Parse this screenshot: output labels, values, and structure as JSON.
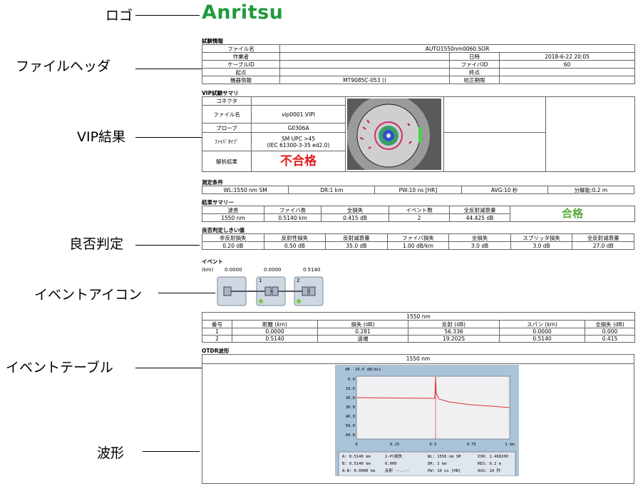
{
  "callouts": [
    "ロゴ",
    "ファイルヘッダ",
    "VIP結果",
    "良否判定",
    "イベントアイコン",
    "イベントテーブル",
    "波形"
  ],
  "logo": "Anritsu",
  "test_info": {
    "title": "試験情報",
    "file_name_label": "ファイル名",
    "file_name": "AUTO1550nm0060.SOR",
    "operator_label": "作業者",
    "datetime_label": "日時",
    "datetime": "2018-6-22 20:05",
    "cable_id_label": "ケーブルID",
    "fiber_id_label": "ファイバID",
    "fiber_id": "60",
    "origin_label": "起点",
    "end_label": "終点",
    "instrument_label": "機器情報",
    "instrument": "MT9085C-053 ()",
    "calibration_label": "校正期限"
  },
  "vip": {
    "title": "VIP試験サマリ",
    "connector_label": "コネクタ",
    "file_name_label": "ファイル名",
    "file_name": "vip0001.VIPI",
    "probe_label": "プローブ",
    "probe": "G0306A",
    "fiber_type_label": "ﾌｧｲﾊﾞﾀｲﾌﾟ",
    "fiber_type": [
      "SM UPC >45",
      "(IEC 61300-3-35 ed2.0)"
    ],
    "result_label": "解析結果",
    "result": "不合格"
  },
  "conditions": {
    "title": "測定条件",
    "items": [
      "WL:1550 nm SM",
      "DR:1 km",
      "PW:10 ns [HR]",
      "AVG:10 秒",
      "分解能:0.2 m"
    ]
  },
  "summary": {
    "title": "結果サマリー",
    "headers": [
      "波長",
      "ファイバ長",
      "全損失",
      "イベント数",
      "全反射減衰量"
    ],
    "values": [
      "1550 nm",
      "0.5140 km",
      "0.415 dB",
      "2",
      "44.425 dB"
    ],
    "verdict": "合格"
  },
  "thresholds": {
    "title": "良否判定しきい値",
    "headers": [
      "非反射損失",
      "反射性損失",
      "反射減衰量",
      "ファイバ損失",
      "全損失",
      "スプリッタ損失",
      "全反射減衰量"
    ],
    "values": [
      "0.20 dB",
      "0.50 dB",
      "35.0 dB",
      "1.00 dB/km",
      "3.0 dB",
      "3.0 dB",
      "27.0 dB"
    ]
  },
  "events": {
    "title": "イベント",
    "unit": "(km)",
    "positions": [
      "0.0000",
      "0.0000",
      "0.5140"
    ],
    "icon_numbers": [
      "1",
      "2"
    ]
  },
  "event_table": {
    "wavelength": "1550 nm",
    "headers": [
      "番号",
      "距離 (km)",
      "損失 (dB)",
      "反射 (dB)",
      "スパン (km)",
      "全損失 (dB)"
    ],
    "rows": [
      [
        "1",
        "0.0000",
        "0.281",
        "56.336",
        "0.0000",
        "0.000"
      ],
      [
        "2",
        "0.5140",
        "遠端",
        "19.202S",
        "0.5140",
        "0.415"
      ]
    ]
  },
  "waveform": {
    "title": "OTDR波形",
    "wavelength": "1550 nm",
    "unit": "dB",
    "scale": "10.0 dB/div",
    "yticks": [
      "0.0",
      "10.0",
      "20.0",
      "30.0",
      "40.0",
      "50.0",
      "60.0"
    ],
    "xticks": [
      "0",
      "0.25",
      "0.5",
      "0.75",
      "1 km"
    ],
    "info": [
      [
        "A:  0.5140 km",
        "B:  0.5140 km",
        "A-B: 0.0000 km"
      ],
      [
        "2-Pt損失",
        "0.000",
        "反射  --.---"
      ],
      [
        "WL: 1550 nm SM",
        "DR: 1 km",
        "PW: 10 ns [HR]"
      ],
      [
        "IOR: 1.468200",
        "RES: 0.2 m",
        "AVG: 10 秒"
      ]
    ]
  }
}
